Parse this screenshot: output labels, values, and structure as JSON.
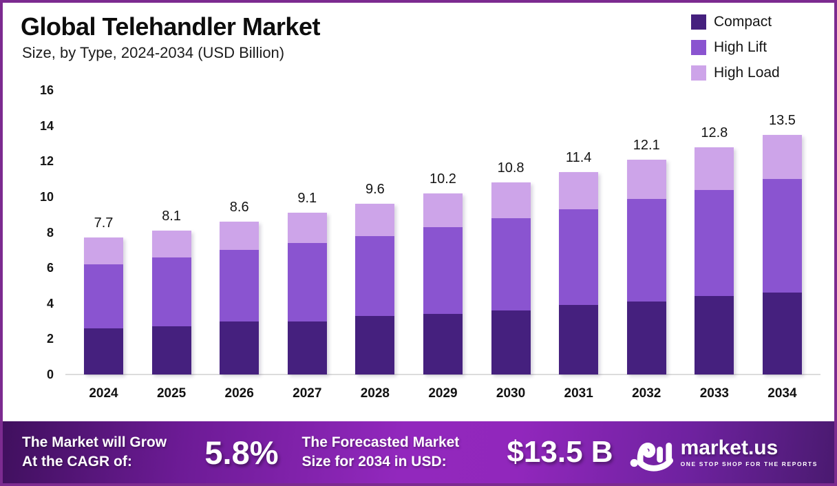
{
  "header": {
    "title": "Global Telehandler Market",
    "subtitle": "Size, by Type, 2024-2034 (USD Billion)"
  },
  "legend": [
    {
      "label": "Compact",
      "color": "#45207e"
    },
    {
      "label": "High Lift",
      "color": "#8a54d0"
    },
    {
      "label": "High Load",
      "color": "#cda4e9"
    }
  ],
  "chart_data": {
    "type": "bar",
    "stacked": true,
    "title": "Global Telehandler Market",
    "subtitle": "Size, by Type, 2024-2034 (USD Billion)",
    "unit": "USD Billion",
    "categories": [
      "2024",
      "2025",
      "2026",
      "2027",
      "2028",
      "2029",
      "2030",
      "2031",
      "2032",
      "2033",
      "2034"
    ],
    "series": [
      {
        "name": "Compact",
        "color": "#45207e",
        "values": [
          2.6,
          2.7,
          3.0,
          3.0,
          3.3,
          3.4,
          3.6,
          3.9,
          4.1,
          4.4,
          4.6
        ]
      },
      {
        "name": "High Lift",
        "color": "#8a54d0",
        "values": [
          3.6,
          3.9,
          4.0,
          4.4,
          4.5,
          4.9,
          5.2,
          5.4,
          5.8,
          6.0,
          6.4
        ]
      },
      {
        "name": "High Load",
        "color": "#cda4e9",
        "values": [
          1.5,
          1.5,
          1.6,
          1.7,
          1.8,
          1.9,
          2.0,
          2.1,
          2.2,
          2.4,
          2.5
        ]
      }
    ],
    "totals": [
      7.7,
      8.1,
      8.6,
      9.1,
      9.6,
      10.2,
      10.8,
      11.4,
      12.1,
      12.8,
      13.5
    ],
    "ylim": [
      0,
      16
    ],
    "yticks": [
      0,
      2,
      4,
      6,
      8,
      10,
      12,
      14,
      16
    ],
    "grid": false,
    "legend_position": "top-right"
  },
  "banner": {
    "cagr_label_line1": "The Market will Grow",
    "cagr_label_line2": "At the CAGR of:",
    "cagr_value": "5.8%",
    "forecast_label_line1": "The Forecasted Market",
    "forecast_label_line2": "Size for 2034 in USD:",
    "forecast_value": "$13.5 B",
    "brand": {
      "name": "market.us",
      "tagline": "ONE STOP SHOP FOR THE REPORTS"
    }
  },
  "colors": {
    "frame_border": "#7c2b90",
    "background": "#ffffff",
    "banner_gradient_start": "#40105e",
    "banner_gradient_mid": "#9228bd",
    "banner_gradient_end": "#4a1a70",
    "axis_line": "#dcdcdc",
    "text": "#141414"
  }
}
